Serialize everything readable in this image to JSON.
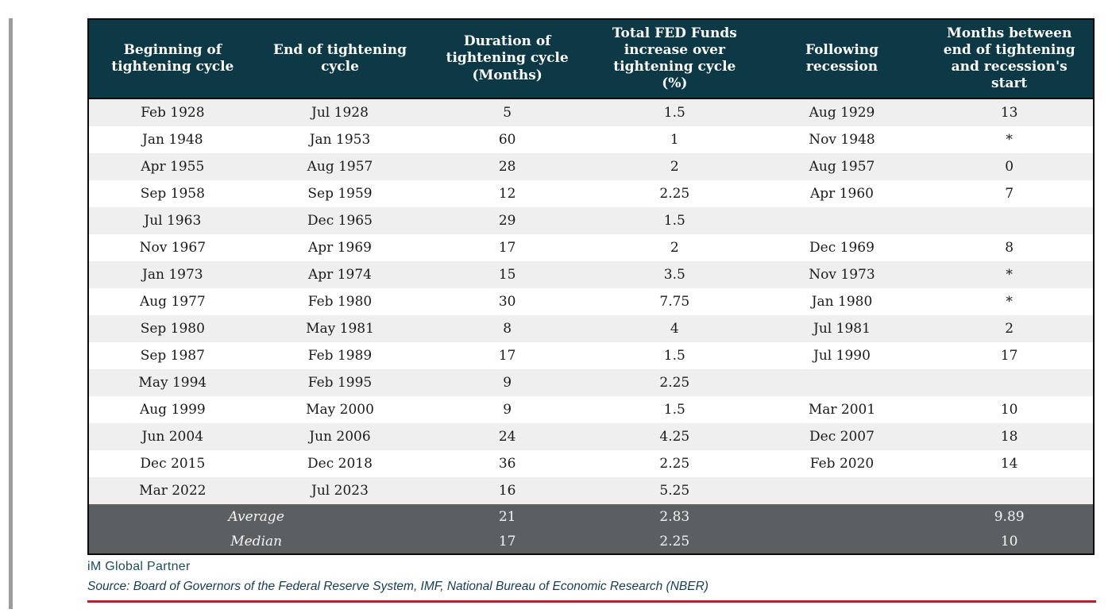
{
  "table": {
    "columns": [
      "Beginning of tightening cycle",
      "End of tightening cycle",
      "Duration of tightening cycle (Months)",
      "Total FED Funds increase over tightening cycle (%)",
      "Following recession",
      "Months between end of tightening and recession's start"
    ],
    "rows": [
      [
        "Feb 1928",
        "Jul 1928",
        "5",
        "1.5",
        "Aug 1929",
        "13"
      ],
      [
        "Jan 1948",
        "Jan 1953",
        "60",
        "1",
        "Nov 1948",
        "*"
      ],
      [
        "Apr 1955",
        "Aug 1957",
        "28",
        "2",
        "Aug 1957",
        "0"
      ],
      [
        "Sep 1958",
        "Sep 1959",
        "12",
        "2.25",
        "Apr 1960",
        "7"
      ],
      [
        "Jul 1963",
        "Dec 1965",
        "29",
        "1.5",
        "",
        ""
      ],
      [
        "Nov 1967",
        "Apr 1969",
        "17",
        "2",
        "Dec 1969",
        "8"
      ],
      [
        "Jan 1973",
        "Apr 1974",
        "15",
        "3.5",
        "Nov 1973",
        "*"
      ],
      [
        "Aug 1977",
        "Feb 1980",
        "30",
        "7.75",
        "Jan 1980",
        "*"
      ],
      [
        "Sep 1980",
        "May 1981",
        "8",
        "4",
        "Jul 1981",
        "2"
      ],
      [
        "Sep 1987",
        "Feb 1989",
        "17",
        "1.5",
        "Jul 1990",
        "17"
      ],
      [
        "May 1994",
        "Feb 1995",
        "9",
        "2.25",
        "",
        ""
      ],
      [
        "Aug 1999",
        "May 2000",
        "9",
        "1.5",
        "Mar 2001",
        "10"
      ],
      [
        "Jun 2004",
        "Jun 2006",
        "24",
        "4.25",
        "Dec 2007",
        "18"
      ],
      [
        "Dec 2015",
        "Dec 2018",
        "36",
        "2.25",
        "Feb 2020",
        "14"
      ],
      [
        "Mar 2022",
        "Jul 2023",
        "16",
        "5.25",
        "",
        ""
      ]
    ],
    "summary_rows": [
      {
        "label": "Average",
        "duration": "21",
        "increase": "2.83",
        "recession": "",
        "months": "9.89"
      },
      {
        "label": "Median",
        "duration": "17",
        "increase": "2.25",
        "recession": "",
        "months": "10"
      }
    ]
  },
  "footer": {
    "brand": "iM Global Partner",
    "source": "Source: Board of Governors of the Federal Reserve System, IMF,  National Bureau of Economic Research (NBER)"
  },
  "colors": {
    "header_bg": "#0c3945",
    "row_alt_bg": "#efefef",
    "summary_bg": "#5b5f62",
    "accent_red": "#b52429",
    "brand_teal": "#1d4e5c",
    "source_teal": "#143c52",
    "table_border": "#0b0b0b",
    "side_line_gray": "#9c9c9c"
  }
}
